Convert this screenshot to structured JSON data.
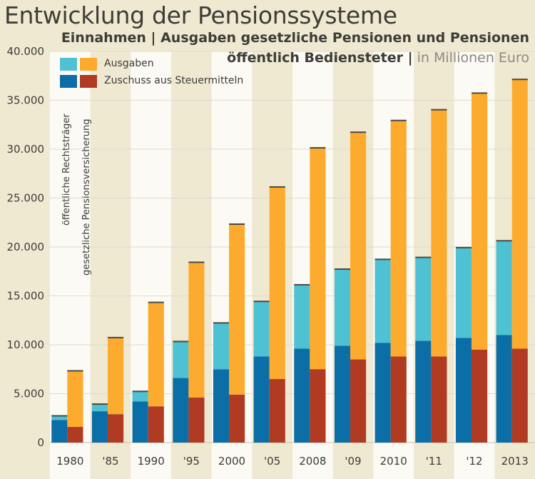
{
  "header": {
    "title": "Entwicklung der Pensionssysteme",
    "subtitle_line1": "Einnahmen | Ausgaben gesetzliche Pensionen und Pensionen",
    "subtitle_line2_bold": "öffentlich Bediensteter |",
    "subtitle_line2_light": " in Millionen Euro"
  },
  "legend": {
    "ausgaben": "Ausgaben",
    "zuschuss": "Zuschuss aus Steuermitteln",
    "col_left": "öffentliche Rechtsträger",
    "col_right": "gesetzliche Pensionsversicherung"
  },
  "colors": {
    "background": "#efe9d2",
    "band_light": "#fbfaf5",
    "ausgaben_oeffentlich": "#4ec1d3",
    "zuschuss_oeffentlich": "#0b6ea6",
    "ausgaben_pv": "#fcab2e",
    "zuschuss_pv": "#b03a22",
    "text": "#3d3d38"
  },
  "chart_data": {
    "type": "bar",
    "stacked_groups": true,
    "ylim": [
      0,
      40000
    ],
    "yticks": [
      0,
      5000,
      10000,
      15000,
      20000,
      25000,
      30000,
      35000,
      40000
    ],
    "ytick_labels": [
      "0",
      "5.000",
      "10.000",
      "15.000",
      "20.000",
      "25.000",
      "30.000",
      "35.000",
      "40.000"
    ],
    "categories": [
      "1980",
      "'85",
      "1990",
      "'95",
      "2000",
      "'05",
      "2008",
      "'09",
      "2010",
      "'11",
      "'12",
      "2013"
    ],
    "groups": [
      {
        "name": "öffentliche Rechtsträger",
        "series": [
          {
            "name": "Zuschuss aus Steuermitteln",
            "values": [
              2300,
              3200,
              4200,
              6600,
              7500,
              8800,
              9600,
              9900,
              10200,
              10400,
              10700,
              11000
            ]
          },
          {
            "name": "Ausgaben",
            "values": [
              2700,
              3900,
              5200,
              10300,
              12200,
              14400,
              16100,
              17700,
              18700,
              18900,
              19900,
              20600
            ]
          }
        ]
      },
      {
        "name": "gesetzliche Pensionsversicherung",
        "series": [
          {
            "name": "Zuschuss aus Steuermitteln",
            "values": [
              1600,
              2900,
              3700,
              4600,
              4900,
              6500,
              7500,
              8500,
              8800,
              8800,
              9500,
              9600
            ]
          },
          {
            "name": "Ausgaben",
            "values": [
              7300,
              10700,
              14300,
              18400,
              22300,
              26100,
              30100,
              31700,
              32900,
              34000,
              35700,
              37100
            ]
          }
        ]
      }
    ]
  }
}
